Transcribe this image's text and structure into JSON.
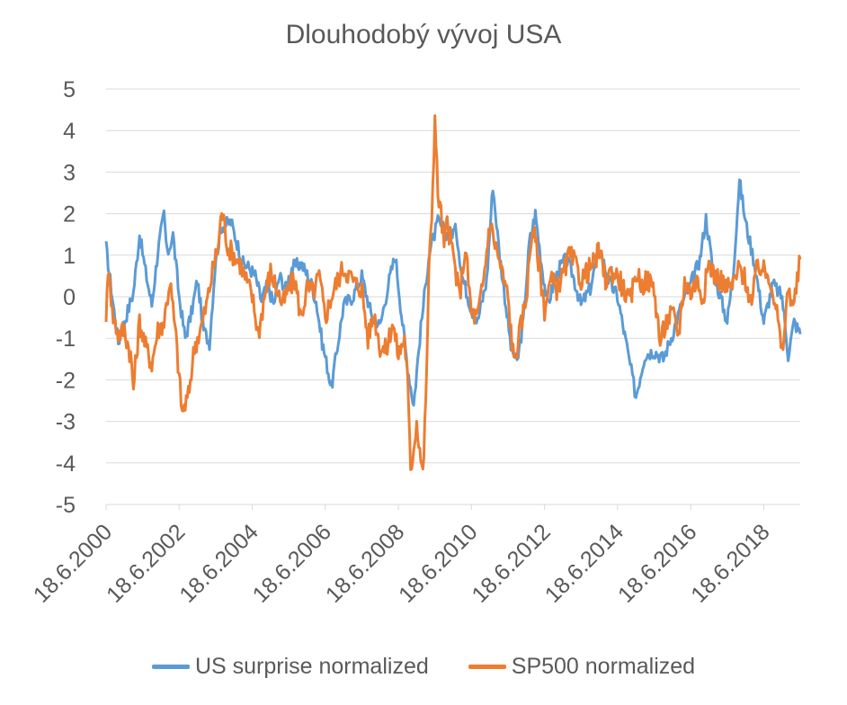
{
  "chart_data": {
    "type": "line",
    "title": "Dlouhodobý vývoj USA",
    "xlabel": "",
    "ylabel": "",
    "ylim": [
      -5,
      5
    ],
    "y_ticks": [
      5,
      4,
      3,
      2,
      1,
      0,
      -1,
      -2,
      -3,
      -4,
      -5
    ],
    "x_range": [
      "2000-06-18",
      "2019-06-18"
    ],
    "x_tick_labels": [
      "18.6.2000",
      "18.6.2002",
      "18.6.2004",
      "18.6.2006",
      "18.6.2008",
      "18.6.2010",
      "18.6.2012",
      "18.6.2014",
      "18.6.2016",
      "18.6.2018"
    ],
    "grid": true,
    "legend_position": "bottom",
    "series": [
      {
        "name": "US surprise normalized",
        "color": "#5B9BD5",
        "points": [
          [
            "2000-06-18",
            1.2
          ],
          [
            "2000-08-18",
            0.0
          ],
          [
            "2000-10-18",
            -1.1
          ],
          [
            "2000-12-18",
            -0.6
          ],
          [
            "2001-03-18",
            0.1
          ],
          [
            "2001-05-18",
            1.5
          ],
          [
            "2001-07-18",
            0.6
          ],
          [
            "2001-09-18",
            -0.2
          ],
          [
            "2001-11-18",
            1.1
          ],
          [
            "2002-01-18",
            2.0
          ],
          [
            "2002-02-18",
            1.0
          ],
          [
            "2002-04-18",
            1.5
          ],
          [
            "2002-06-18",
            0.0
          ],
          [
            "2002-08-18",
            -1.0
          ],
          [
            "2002-10-18",
            -0.4
          ],
          [
            "2002-12-18",
            0.4
          ],
          [
            "2003-02-18",
            -0.8
          ],
          [
            "2003-04-18",
            -1.1
          ],
          [
            "2003-06-18",
            0.9
          ],
          [
            "2003-08-18",
            1.7
          ],
          [
            "2003-11-18",
            1.8
          ],
          [
            "2004-01-18",
            1.3
          ],
          [
            "2004-03-18",
            0.8
          ],
          [
            "2004-05-18",
            0.7
          ],
          [
            "2004-07-18",
            0.5
          ],
          [
            "2004-09-18",
            -0.1
          ],
          [
            "2004-11-18",
            0.3
          ],
          [
            "2005-01-18",
            -0.2
          ],
          [
            "2005-03-18",
            0.5
          ],
          [
            "2005-05-18",
            0.2
          ],
          [
            "2005-07-18",
            0.7
          ],
          [
            "2005-10-18",
            0.8
          ],
          [
            "2006-01-18",
            0.4
          ],
          [
            "2006-03-18",
            -0.1
          ],
          [
            "2006-05-18",
            -1.1
          ],
          [
            "2006-07-18",
            -1.8
          ],
          [
            "2006-08-18",
            -2.2
          ],
          [
            "2006-10-18",
            -1.2
          ],
          [
            "2006-12-18",
            -0.2
          ],
          [
            "2007-03-18",
            0.0
          ],
          [
            "2007-06-18",
            0.5
          ],
          [
            "2007-09-18",
            -0.4
          ],
          [
            "2007-12-18",
            -0.7
          ],
          [
            "2008-03-18",
            0.4
          ],
          [
            "2008-05-18",
            1.0
          ],
          [
            "2008-07-18",
            -0.4
          ],
          [
            "2008-09-18",
            -1.7
          ],
          [
            "2008-11-18",
            -2.6
          ],
          [
            "2009-01-18",
            -1.0
          ],
          [
            "2009-04-18",
            1.0
          ],
          [
            "2009-07-18",
            1.8
          ],
          [
            "2009-10-18",
            1.5
          ],
          [
            "2010-01-18",
            1.6
          ],
          [
            "2010-03-18",
            0.5
          ],
          [
            "2010-06-18",
            -0.3
          ],
          [
            "2010-08-18",
            -0.6
          ],
          [
            "2010-11-18",
            0.4
          ],
          [
            "2011-01-18",
            2.7
          ],
          [
            "2011-03-18",
            1.2
          ],
          [
            "2011-05-18",
            0.0
          ],
          [
            "2011-07-18",
            -1.2
          ],
          [
            "2011-09-18",
            -1.6
          ],
          [
            "2011-11-18",
            -0.6
          ],
          [
            "2012-01-18",
            1.3
          ],
          [
            "2012-03-18",
            2.0
          ],
          [
            "2012-05-18",
            0.8
          ],
          [
            "2012-07-18",
            -0.2
          ],
          [
            "2012-09-18",
            0.3
          ],
          [
            "2012-11-18",
            0.7
          ],
          [
            "2013-01-18",
            0.9
          ],
          [
            "2013-03-18",
            0.6
          ],
          [
            "2013-06-18",
            -0.2
          ],
          [
            "2013-09-18",
            0.2
          ],
          [
            "2013-12-18",
            1.2
          ],
          [
            "2014-03-18",
            0.4
          ],
          [
            "2014-06-18",
            0.0
          ],
          [
            "2014-09-18",
            -1.2
          ],
          [
            "2014-12-18",
            -2.4
          ],
          [
            "2015-03-18",
            -1.4
          ],
          [
            "2015-06-18",
            -1.3
          ],
          [
            "2015-09-18",
            -1.5
          ],
          [
            "2015-12-18",
            -0.9
          ],
          [
            "2016-03-18",
            -0.2
          ],
          [
            "2016-06-18",
            0.3
          ],
          [
            "2016-09-18",
            0.9
          ],
          [
            "2016-11-18",
            1.9
          ],
          [
            "2017-01-18",
            0.8
          ],
          [
            "2017-03-18",
            0.2
          ],
          [
            "2017-06-18",
            -0.6
          ],
          [
            "2017-08-18",
            0.6
          ],
          [
            "2017-10-18",
            2.8
          ],
          [
            "2017-12-18",
            1.8
          ],
          [
            "2018-03-18",
            0.8
          ],
          [
            "2018-06-18",
            -0.6
          ],
          [
            "2018-09-18",
            0.3
          ],
          [
            "2018-12-18",
            0.0
          ],
          [
            "2019-02-18",
            -1.4
          ],
          [
            "2019-04-18",
            -0.6
          ],
          [
            "2019-06-18",
            -0.9
          ]
        ]
      },
      {
        "name": "SP500 normalized",
        "color": "#ED7D31",
        "points": [
          [
            "2000-06-18",
            -0.4
          ],
          [
            "2000-07-18",
            0.8
          ],
          [
            "2000-08-18",
            -0.4
          ],
          [
            "2000-10-18",
            -0.9
          ],
          [
            "2000-12-18",
            -0.8
          ],
          [
            "2001-02-18",
            -1.4
          ],
          [
            "2001-03-18",
            -2.2
          ],
          [
            "2001-05-18",
            -0.6
          ],
          [
            "2001-07-18",
            -1.2
          ],
          [
            "2001-09-18",
            -1.6
          ],
          [
            "2001-11-18",
            -0.8
          ],
          [
            "2002-01-18",
            -0.6
          ],
          [
            "2002-03-18",
            0.4
          ],
          [
            "2002-05-18",
            -1.0
          ],
          [
            "2002-07-18",
            -2.8
          ],
          [
            "2002-09-18",
            -2.4
          ],
          [
            "2002-11-18",
            -1.2
          ],
          [
            "2003-01-18",
            -0.8
          ],
          [
            "2003-03-18",
            -0.2
          ],
          [
            "2003-05-18",
            0.6
          ],
          [
            "2003-07-18",
            1.3
          ],
          [
            "2003-08-18",
            2.1
          ],
          [
            "2003-10-18",
            1.2
          ],
          [
            "2003-12-18",
            1.0
          ],
          [
            "2004-02-18",
            0.8
          ],
          [
            "2004-04-18",
            0.4
          ],
          [
            "2004-06-18",
            0.0
          ],
          [
            "2004-08-18",
            -0.9
          ],
          [
            "2004-10-18",
            0.0
          ],
          [
            "2004-12-18",
            0.6
          ],
          [
            "2005-02-18",
            0.2
          ],
          [
            "2005-04-18",
            -0.2
          ],
          [
            "2005-06-18",
            0.2
          ],
          [
            "2005-08-18",
            0.4
          ],
          [
            "2005-10-18",
            -0.5
          ],
          [
            "2005-12-18",
            0.2
          ],
          [
            "2006-02-18",
            0.1
          ],
          [
            "2006-04-18",
            0.5
          ],
          [
            "2006-06-18",
            -0.5
          ],
          [
            "2006-08-18",
            0.0
          ],
          [
            "2006-10-18",
            0.4
          ],
          [
            "2006-12-18",
            0.7
          ],
          [
            "2007-02-18",
            0.5
          ],
          [
            "2007-04-18",
            0.3
          ],
          [
            "2007-06-18",
            0.2
          ],
          [
            "2007-08-18",
            -1.0
          ],
          [
            "2007-10-18",
            -0.4
          ],
          [
            "2007-12-18",
            -1.2
          ],
          [
            "2008-02-18",
            -1.3
          ],
          [
            "2008-04-18",
            -0.6
          ],
          [
            "2008-06-18",
            -1.4
          ],
          [
            "2008-08-18",
            -1.0
          ],
          [
            "2008-09-18",
            -2.0
          ],
          [
            "2008-10-18",
            -4.2
          ],
          [
            "2008-11-18",
            -3.6
          ],
          [
            "2008-12-18",
            -3.0
          ],
          [
            "2009-02-18",
            -4.3
          ],
          [
            "2009-03-18",
            -2.6
          ],
          [
            "2009-04-18",
            0.5
          ],
          [
            "2009-05-18",
            2.0
          ],
          [
            "2009-06-18",
            4.3
          ],
          [
            "2009-07-18",
            2.5
          ],
          [
            "2009-08-18",
            2.0
          ],
          [
            "2009-09-18",
            1.2
          ],
          [
            "2009-10-18",
            1.8
          ],
          [
            "2009-12-18",
            1.0
          ],
          [
            "2010-02-18",
            0.0
          ],
          [
            "2010-04-18",
            1.2
          ],
          [
            "2010-06-18",
            -0.4
          ],
          [
            "2010-08-18",
            -0.5
          ],
          [
            "2010-10-18",
            0.4
          ],
          [
            "2010-12-18",
            1.8
          ],
          [
            "2011-02-18",
            1.2
          ],
          [
            "2011-04-18",
            0.6
          ],
          [
            "2011-06-18",
            0.0
          ],
          [
            "2011-08-18",
            -1.6
          ],
          [
            "2011-10-18",
            -0.8
          ],
          [
            "2011-12-18",
            0.0
          ],
          [
            "2012-02-18",
            1.7
          ],
          [
            "2012-04-18",
            0.9
          ],
          [
            "2012-06-18",
            -0.3
          ],
          [
            "2012-08-18",
            0.4
          ],
          [
            "2012-10-18",
            0.2
          ],
          [
            "2012-12-18",
            0.5
          ],
          [
            "2013-02-18",
            1.0
          ],
          [
            "2013-04-18",
            0.8
          ],
          [
            "2013-06-18",
            0.4
          ],
          [
            "2013-08-18",
            0.6
          ],
          [
            "2013-10-18",
            0.8
          ],
          [
            "2013-12-18",
            1.1
          ],
          [
            "2014-02-18",
            0.4
          ],
          [
            "2014-04-18",
            0.6
          ],
          [
            "2014-06-18",
            0.5
          ],
          [
            "2014-08-18",
            0.2
          ],
          [
            "2014-10-18",
            -0.2
          ],
          [
            "2014-12-18",
            0.6
          ],
          [
            "2015-02-18",
            0.3
          ],
          [
            "2015-04-18",
            0.4
          ],
          [
            "2015-06-18",
            0.2
          ],
          [
            "2015-08-18",
            -1.1
          ],
          [
            "2015-10-18",
            -0.6
          ],
          [
            "2015-12-18",
            -0.4
          ],
          [
            "2016-02-18",
            -0.9
          ],
          [
            "2016-04-18",
            0.4
          ],
          [
            "2016-06-18",
            0.1
          ],
          [
            "2016-08-18",
            0.4
          ],
          [
            "2016-10-18",
            0.0
          ],
          [
            "2016-12-18",
            0.8
          ],
          [
            "2017-02-18",
            0.5
          ],
          [
            "2017-04-18",
            0.4
          ],
          [
            "2017-06-18",
            0.2
          ],
          [
            "2017-08-18",
            0.3
          ],
          [
            "2017-10-18",
            0.7
          ],
          [
            "2017-12-18",
            0.4
          ],
          [
            "2018-02-18",
            -0.2
          ],
          [
            "2018-04-18",
            0.8
          ],
          [
            "2018-06-18",
            0.6
          ],
          [
            "2018-08-18",
            0.5
          ],
          [
            "2018-10-18",
            -0.2
          ],
          [
            "2018-12-18",
            -1.4
          ],
          [
            "2019-02-18",
            0.2
          ],
          [
            "2019-04-18",
            -0.2
          ],
          [
            "2019-06-18",
            0.9
          ]
        ]
      }
    ]
  }
}
